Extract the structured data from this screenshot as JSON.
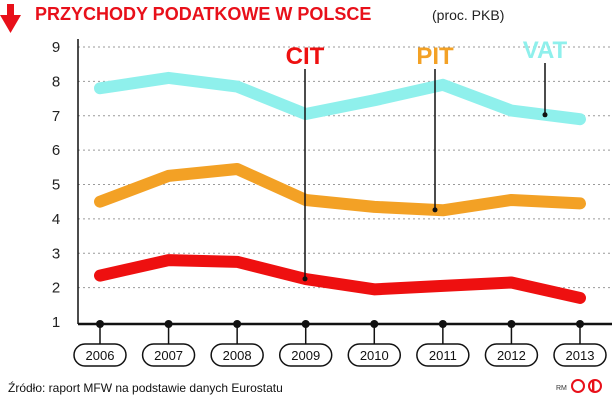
{
  "header": {
    "title": "PRZYCHODY PODATKOWE W POLSCE",
    "unit": "(proc. PKB)"
  },
  "footer": {
    "source": "Źródło: raport MFW na podstawie danych Eurostatu",
    "credit": "RM"
  },
  "colors": {
    "title": "#e8101a",
    "arrow": "#e8101a",
    "CIT": "#ee1010",
    "PIT": "#f3a125",
    "VAT": "#8ff0ec",
    "grid": "#9a9a9a",
    "axis": "#111111",
    "logo": "#e8101a"
  },
  "icons": {
    "down_arrow": "down-arrow-icon",
    "logo": "publisher-logo-icon"
  },
  "chart_data": {
    "type": "line",
    "title": "PRZYCHODY PODATKOWE W POLSCE",
    "subtitle": "(proc. PKB)",
    "categories": [
      "2006",
      "2007",
      "2008",
      "2009",
      "2010",
      "2011",
      "2012",
      "2013"
    ],
    "y_ticks": [
      "1",
      "2",
      "3",
      "4",
      "5",
      "6",
      "7",
      "8",
      "9"
    ],
    "ylim": [
      1,
      9
    ],
    "grid": true,
    "series": [
      {
        "name": "CIT",
        "values": [
          2.35,
          2.8,
          2.75,
          2.25,
          1.95,
          2.05,
          2.15,
          1.7
        ]
      },
      {
        "name": "PIT",
        "values": [
          4.5,
          5.25,
          5.45,
          4.55,
          4.35,
          4.25,
          4.55,
          4.45
        ]
      },
      {
        "name": "VAT",
        "values": [
          7.8,
          8.1,
          7.85,
          7.05,
          7.45,
          7.9,
          7.15,
          6.9
        ]
      }
    ]
  }
}
